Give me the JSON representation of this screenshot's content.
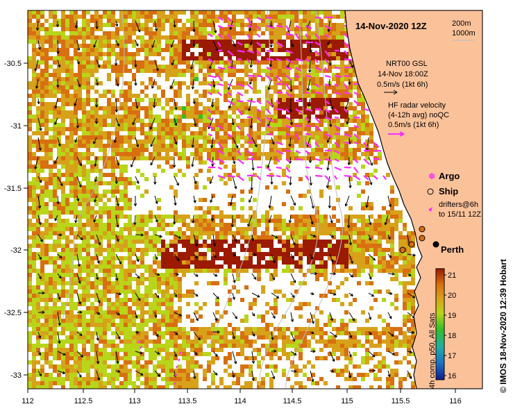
{
  "map": {
    "date_title": "14-Nov-2020 12Z",
    "depth_labels": [
      "200m",
      "1000m"
    ],
    "model_block": [
      "NRT00 GSL",
      "14-Nov 18:00Z",
      "0.5m/s (1kt 6h)"
    ],
    "radar_block": [
      "HF radar velocity",
      "(4-12h avg) noQC",
      "0.5m/s (1kt 6h)"
    ],
    "legend": {
      "argo": "Argo",
      "ship": "Ship",
      "drifters": [
        "drifters@6h",
        "to 15/11 12Z"
      ]
    },
    "city": "Perth",
    "credit": "© IMOS 18-Nov-2020 12:39 Hobart",
    "colorbar_label": "4h comp. p50, All Sats",
    "colorbar_ticks": [
      "21",
      "20",
      "19",
      "18",
      "17",
      "16"
    ],
    "x_ticks": [
      "112",
      "112.5",
      "113",
      "113.5",
      "114",
      "114.5",
      "115",
      "115.5",
      "116"
    ],
    "y_ticks": [
      "-30.5",
      "-31",
      "-31.5",
      "-32",
      "-32.5",
      "-33"
    ],
    "colors": {
      "land": "#fbc29a",
      "sst_hot": "#9b1a00",
      "sst_warm": "#d86f10",
      "sst_mid": "#d7a21a",
      "sst_cool": "#b8d51a",
      "radar_arrow": "#ff2aff",
      "coast": "#000000",
      "contour": "#bdbdbd"
    }
  }
}
